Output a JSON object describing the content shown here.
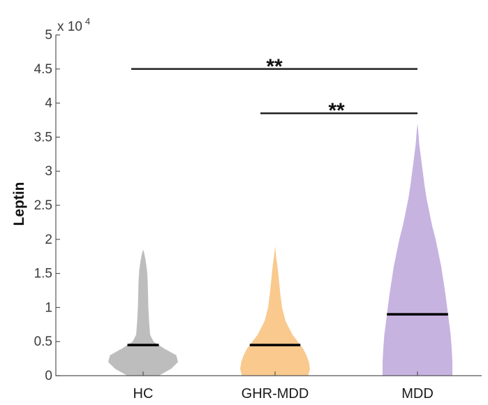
{
  "chart_data": {
    "type": "violin",
    "ylabel": "Leptin",
    "y_exponent_label": "x 10",
    "y_exponent_power": "4",
    "ylim": [
      0,
      5
    ],
    "yticks": [
      {
        "value": 0,
        "label": "0"
      },
      {
        "value": 0.5,
        "label": "0.5"
      },
      {
        "value": 1,
        "label": "1"
      },
      {
        "value": 1.5,
        "label": "1.5"
      },
      {
        "value": 2,
        "label": "2"
      },
      {
        "value": 2.5,
        "label": "2.5"
      },
      {
        "value": 3,
        "label": "3"
      },
      {
        "value": 3.5,
        "label": "3.5"
      },
      {
        "value": 4,
        "label": "4"
      },
      {
        "value": 4.5,
        "label": "4.5"
      },
      {
        "value": 5,
        "label": "5"
      }
    ],
    "categories": [
      "HC",
      "GHR-MDD",
      "MDD"
    ],
    "groups": [
      {
        "category": "HC",
        "color": "#bdbdbd",
        "median": 0.45,
        "max": 1.85,
        "profile": [
          [
            0,
            0.45
          ],
          [
            0.1,
            0.8
          ],
          [
            0.2,
            1.0
          ],
          [
            0.3,
            0.95
          ],
          [
            0.4,
            0.6
          ],
          [
            0.5,
            0.3
          ],
          [
            0.6,
            0.2
          ],
          [
            0.8,
            0.17
          ],
          [
            1.0,
            0.15
          ],
          [
            1.2,
            0.14
          ],
          [
            1.4,
            0.13
          ],
          [
            1.55,
            0.11
          ],
          [
            1.7,
            0.07
          ],
          [
            1.8,
            0.03
          ],
          [
            1.85,
            0.0
          ]
        ]
      },
      {
        "category": "GHR-MDD",
        "color": "#f9c98e",
        "median": 0.45,
        "max": 1.9,
        "profile": [
          [
            0,
            0.95
          ],
          [
            0.1,
            1.0
          ],
          [
            0.2,
            0.97
          ],
          [
            0.3,
            0.9
          ],
          [
            0.4,
            0.8
          ],
          [
            0.5,
            0.65
          ],
          [
            0.6,
            0.5
          ],
          [
            0.8,
            0.3
          ],
          [
            1.0,
            0.2
          ],
          [
            1.2,
            0.15
          ],
          [
            1.4,
            0.11
          ],
          [
            1.6,
            0.07
          ],
          [
            1.75,
            0.03
          ],
          [
            1.9,
            0.0
          ]
        ]
      },
      {
        "category": "MDD",
        "color": "#c6b3e0",
        "median": 0.9,
        "max": 3.7,
        "profile": [
          [
            0,
            1.0
          ],
          [
            0.2,
            1.0
          ],
          [
            0.4,
            0.98
          ],
          [
            0.6,
            0.95
          ],
          [
            0.8,
            0.9
          ],
          [
            1.0,
            0.85
          ],
          [
            1.2,
            0.8
          ],
          [
            1.4,
            0.74
          ],
          [
            1.6,
            0.68
          ],
          [
            1.8,
            0.6
          ],
          [
            2.0,
            0.52
          ],
          [
            2.2,
            0.42
          ],
          [
            2.4,
            0.34
          ],
          [
            2.6,
            0.26
          ],
          [
            2.8,
            0.2
          ],
          [
            3.0,
            0.15
          ],
          [
            3.2,
            0.1
          ],
          [
            3.4,
            0.05
          ],
          [
            3.6,
            0.02
          ],
          [
            3.7,
            0.0
          ]
        ]
      }
    ],
    "significance": [
      {
        "from": "HC",
        "to": "MDD",
        "y": 4.5,
        "label": "**"
      },
      {
        "from": "GHR-MDD",
        "to": "MDD",
        "y": 3.85,
        "label": "**"
      }
    ]
  }
}
